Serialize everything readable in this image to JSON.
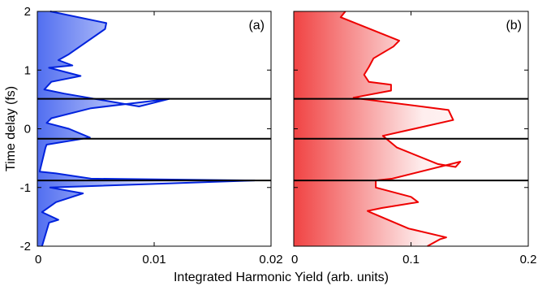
{
  "chart_data": {
    "type": "area",
    "ylabel": "Time delay (fs)",
    "xlabel": "Integrated Harmonic Yield (arb. units)",
    "ylim": [
      -2,
      2
    ],
    "yticks": [
      -2,
      -1,
      0,
      1,
      2
    ],
    "horizontal_lines_y": [
      0.51,
      -0.17,
      -0.88
    ],
    "panels": [
      {
        "label": "(a)",
        "xlim": [
          0,
          0.02
        ],
        "xticks": [
          0,
          0.01,
          0.02
        ],
        "xtick_labels": [
          "0",
          "0.01",
          "0.02"
        ],
        "color": "#0022dd",
        "fill_color": "#3355ee",
        "series": [
          {
            "x": [
              0.0011,
              0.0059,
              0.0058,
              0.0027,
              0.0018,
              0.003,
              0.001,
              0.0037,
              0.0012,
              0.0006,
              0.0023,
              0.0087,
              0.0113,
              0.0046,
              0.0012,
              0.0008,
              0.0027,
              0.0045,
              0.0008,
              0.0007,
              0.0002,
              0.0016,
              0.0046,
              0.0186,
              0.0011,
              0.0039,
              0.0016,
              0.0004,
              0.0018,
              0.001,
              0.0004
            ],
            "y": [
              2.0,
              1.8,
              1.7,
              1.27,
              1.17,
              1.08,
              1.04,
              0.9,
              0.8,
              0.67,
              0.6,
              0.38,
              0.51,
              0.35,
              0.18,
              0.1,
              0.0,
              -0.15,
              -0.27,
              -0.32,
              -0.73,
              -0.76,
              -0.85,
              -0.88,
              -1.0,
              -1.1,
              -1.25,
              -1.42,
              -1.55,
              -1.6,
              -2.0
            ]
          }
        ]
      },
      {
        "label": "(b)",
        "xlim": [
          0,
          0.2
        ],
        "xticks": [
          0,
          0.1,
          0.2
        ],
        "xtick_labels": [
          "0",
          "0.1",
          "0.2"
        ],
        "color": "#ee0000",
        "fill_color": "#ee2222",
        "series": [
          {
            "x": [
              0.044,
              0.04,
              0.09,
              0.085,
              0.068,
              0.064,
              0.06,
              0.064,
              0.083,
              0.083,
              0.051,
              0.058,
              0.132,
              0.136,
              0.076,
              0.088,
              0.123,
              0.138,
              0.142,
              0.084,
              0.07,
              0.07,
              0.1,
              0.106,
              0.075,
              0.063,
              0.065,
              0.098,
              0.13,
              0.125,
              0.114
            ],
            "y": [
              2.0,
              1.9,
              1.5,
              1.4,
              1.2,
              1.05,
              0.92,
              0.8,
              0.75,
              0.65,
              0.53,
              0.51,
              0.32,
              0.15,
              -0.12,
              -0.32,
              -0.6,
              -0.65,
              -0.56,
              -0.85,
              -0.88,
              -1.0,
              -1.16,
              -1.25,
              -1.35,
              -1.4,
              -1.42,
              -1.7,
              -1.85,
              -1.88,
              -2.0
            ]
          }
        ]
      }
    ]
  }
}
